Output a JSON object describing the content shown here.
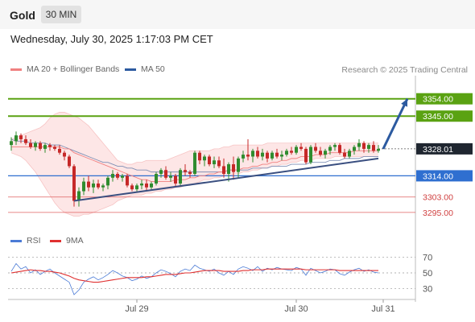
{
  "header": {
    "symbol": "Gold",
    "timeframe": "30 MIN"
  },
  "datetime": "Wednesday, July 30, 2025 1:17:03 PM CET",
  "legend": {
    "ma20": "MA 20 + Bollinger Bands",
    "ma50": "MA 50",
    "credit": "Research © 2025 Trading Central",
    "rsi": "RSI",
    "ma9": "9MA"
  },
  "colors": {
    "green": "#5aa212",
    "blue_line": "#2f6fd0",
    "red_line": "#e06060",
    "current_box": "#1f2630",
    "arrow": "#2c5aa0",
    "candle_up": "#2f8c2f",
    "candle_down": "#c62828",
    "ma20": "#f08080",
    "ma50": "#7f8fb5",
    "band_fill": "#fde2e2",
    "rsi": "#4b7bd6",
    "rsi_ma": "#e03030"
  },
  "price_levels": [
    {
      "value": 3354.0,
      "label": "3354.00",
      "kind": "resistance-green",
      "boxed": true
    },
    {
      "value": 3345.0,
      "label": "3345.00",
      "kind": "resistance-green",
      "boxed": true
    },
    {
      "value": 3328.01,
      "label": "3328.01",
      "kind": "current",
      "boxed": true
    },
    {
      "value": 3314.0,
      "label": "3314.00",
      "kind": "pivot-blue",
      "boxed": true
    },
    {
      "value": 3303.0,
      "label": "3303.00",
      "kind": "support-red",
      "boxed": false
    },
    {
      "value": 3295.0,
      "label": "3295.00",
      "kind": "support-red",
      "boxed": false
    }
  ],
  "chart_data": {
    "type": "candlestick",
    "instrument": "Gold",
    "interval": "30 MIN",
    "x_tick_labels": [
      "Jul 29",
      "Jul 30",
      "Jul 31"
    ],
    "x_tick_bar_index": [
      26,
      59,
      77
    ],
    "y_range": [
      3287,
      3366
    ],
    "ohlc": [
      [
        3330,
        3334,
        3327,
        3332
      ],
      [
        3332,
        3337,
        3330,
        3335
      ],
      [
        3335,
        3336,
        3331,
        3333
      ],
      [
        3333,
        3335,
        3330,
        3331
      ],
      [
        3331,
        3333,
        3328,
        3329
      ],
      [
        3329,
        3332,
        3327,
        3331
      ],
      [
        3331,
        3332,
        3327,
        3328
      ],
      [
        3328,
        3331,
        3326,
        3330
      ],
      [
        3330,
        3331,
        3327,
        3329
      ],
      [
        3329,
        3330,
        3327,
        3328
      ],
      [
        3328,
        3330,
        3325,
        3326
      ],
      [
        3326,
        3327,
        3322,
        3324
      ],
      [
        3324,
        3325,
        3318,
        3319
      ],
      [
        3319,
        3320,
        3298,
        3301
      ],
      [
        3301,
        3308,
        3298,
        3306
      ],
      [
        3306,
        3313,
        3304,
        3311
      ],
      [
        3311,
        3314,
        3306,
        3308
      ],
      [
        3308,
        3312,
        3305,
        3310
      ],
      [
        3310,
        3312,
        3307,
        3308
      ],
      [
        3308,
        3310,
        3306,
        3309
      ],
      [
        3309,
        3314,
        3307,
        3313
      ],
      [
        3313,
        3317,
        3311,
        3315
      ],
      [
        3315,
        3316,
        3312,
        3313
      ],
      [
        3313,
        3315,
        3311,
        3314
      ],
      [
        3314,
        3315,
        3308,
        3309
      ],
      [
        3309,
        3310,
        3306,
        3307
      ],
      [
        3307,
        3310,
        3306,
        3309
      ],
      [
        3309,
        3312,
        3307,
        3310
      ],
      [
        3310,
        3312,
        3306,
        3308
      ],
      [
        3308,
        3311,
        3307,
        3310
      ],
      [
        3310,
        3316,
        3309,
        3315
      ],
      [
        3315,
        3318,
        3313,
        3317
      ],
      [
        3317,
        3319,
        3312,
        3313
      ],
      [
        3313,
        3316,
        3311,
        3314
      ],
      [
        3314,
        3315,
        3308,
        3310
      ],
      [
        3310,
        3318,
        3309,
        3317
      ],
      [
        3317,
        3320,
        3314,
        3316
      ],
      [
        3316,
        3317,
        3313,
        3315
      ],
      [
        3315,
        3327,
        3314,
        3326
      ],
      [
        3326,
        3327,
        3320,
        3322
      ],
      [
        3322,
        3325,
        3319,
        3324
      ],
      [
        3324,
        3325,
        3319,
        3320
      ],
      [
        3320,
        3324,
        3318,
        3322
      ],
      [
        3322,
        3324,
        3318,
        3319
      ],
      [
        3319,
        3323,
        3313,
        3315
      ],
      [
        3315,
        3321,
        3311,
        3320
      ],
      [
        3320,
        3324,
        3312,
        3316
      ],
      [
        3316,
        3324,
        3313,
        3323
      ],
      [
        3323,
        3327,
        3321,
        3325
      ],
      [
        3325,
        3333,
        3322,
        3324
      ],
      [
        3324,
        3328,
        3321,
        3327
      ],
      [
        3327,
        3329,
        3323,
        3324
      ],
      [
        3324,
        3328,
        3322,
        3326
      ],
      [
        3326,
        3327,
        3321,
        3323
      ],
      [
        3323,
        3327,
        3322,
        3326
      ],
      [
        3326,
        3328,
        3323,
        3324
      ],
      [
        3324,
        3327,
        3322,
        3325
      ],
      [
        3325,
        3328,
        3324,
        3327
      ],
      [
        3327,
        3329,
        3325,
        3326
      ],
      [
        3326,
        3330,
        3325,
        3329
      ],
      [
        3329,
        3331,
        3327,
        3328
      ],
      [
        3328,
        3329,
        3320,
        3321
      ],
      [
        3321,
        3330,
        3320,
        3329
      ],
      [
        3329,
        3331,
        3326,
        3327
      ],
      [
        3327,
        3329,
        3324,
        3325
      ],
      [
        3325,
        3328,
        3323,
        3327
      ],
      [
        3327,
        3330,
        3325,
        3329
      ],
      [
        3329,
        3331,
        3327,
        3330
      ],
      [
        3330,
        3331,
        3325,
        3326
      ],
      [
        3326,
        3328,
        3323,
        3324
      ],
      [
        3324,
        3328,
        3323,
        3327
      ],
      [
        3327,
        3330,
        3325,
        3329
      ],
      [
        3329,
        3333,
        3327,
        3331
      ],
      [
        3331,
        3332,
        3326,
        3328
      ],
      [
        3328,
        3331,
        3326,
        3330
      ],
      [
        3330,
        3332,
        3326,
        3327
      ],
      [
        3327,
        3330,
        3326,
        3328
      ]
    ],
    "ma20": [
      3329,
      3329,
      3329,
      3329,
      3329,
      3329,
      3329,
      3329,
      3329,
      3329,
      3329,
      3328,
      3328,
      3326,
      3325,
      3324,
      3323,
      3322,
      3321,
      3320,
      3319,
      3318,
      3317,
      3316,
      3315,
      3314,
      3313,
      3312,
      3312,
      3311,
      3311,
      3311,
      3311,
      3311,
      3312,
      3312,
      3312,
      3313,
      3313,
      3314,
      3314,
      3315,
      3315,
      3316,
      3316,
      3317,
      3317,
      3317,
      3318,
      3318,
      3319,
      3319,
      3320,
      3320,
      3321,
      3321,
      3322,
      3322,
      3323,
      3323,
      3324,
      3324,
      3324,
      3325,
      3325,
      3325,
      3326,
      3326,
      3326,
      3326,
      3326,
      3327,
      3327,
      3327,
      3327,
      3327,
      3327
    ],
    "ma50": [
      3333,
      3332,
      3332,
      3332,
      3331,
      3331,
      3331,
      3331,
      3330,
      3330,
      3330,
      3329,
      3328,
      3327,
      3326,
      3325,
      3324,
      3323,
      3322,
      3321,
      3321,
      3320,
      3319,
      3319,
      3318,
      3318,
      3317,
      3317,
      3317,
      3316,
      3316,
      3316,
      3316,
      3316,
      3316,
      3316,
      3316,
      3316,
      3316,
      3316,
      3316,
      3316,
      3316,
      3316,
      3316,
      3317,
      3317,
      3317,
      3317,
      3317,
      3318,
      3318,
      3318,
      3318,
      3319,
      3319,
      3319,
      3319,
      3320,
      3320,
      3320,
      3320,
      3321,
      3321,
      3321,
      3321,
      3322,
      3322,
      3322,
      3323,
      3323,
      3323,
      3323,
      3324,
      3324,
      3324,
      3324
    ],
    "bollinger_upper": [
      3333,
      3334,
      3335,
      3336,
      3337,
      3338,
      3339,
      3341,
      3344,
      3346,
      3347,
      3347,
      3346,
      3345,
      3344,
      3342,
      3340,
      3337,
      3334,
      3331,
      3328,
      3325,
      3322,
      3321,
      3320,
      3320,
      3321,
      3321,
      3322,
      3322,
      3322,
      3322,
      3322,
      3323,
      3324,
      3325,
      3326,
      3327,
      3327,
      3327,
      3327,
      3327,
      3328,
      3328,
      3329,
      3329,
      3330,
      3330,
      3330,
      3330,
      3330,
      3330,
      3330,
      3331,
      3331,
      3331,
      3331,
      3331,
      3331,
      3331,
      3331,
      3331,
      3331,
      3331,
      3331,
      3331,
      3331,
      3331,
      3331,
      3331,
      3331,
      3331,
      3331,
      3331,
      3331,
      3331,
      3331
    ],
    "bollinger_lower": [
      3326,
      3325,
      3324,
      3322,
      3319,
      3316,
      3312,
      3308,
      3304,
      3300,
      3297,
      3295,
      3294,
      3293,
      3293,
      3294,
      3294,
      3295,
      3296,
      3297,
      3298,
      3299,
      3301,
      3302,
      3303,
      3304,
      3304,
      3304,
      3305,
      3305,
      3306,
      3306,
      3307,
      3307,
      3308,
      3308,
      3309,
      3309,
      3310,
      3311,
      3312,
      3312,
      3313,
      3313,
      3314,
      3314,
      3315,
      3315,
      3316,
      3316,
      3317,
      3317,
      3318,
      3318,
      3319,
      3319,
      3320,
      3320,
      3321,
      3321,
      3322,
      3322,
      3322,
      3323,
      3323,
      3323,
      3323,
      3324,
      3324,
      3324,
      3324,
      3324,
      3324,
      3324,
      3324,
      3324,
      3324
    ],
    "trendline": {
      "from": [
        13,
        3301
      ],
      "to": [
        76,
        3323
      ]
    },
    "projection_arrow": {
      "from": [
        77,
        3328
      ],
      "to": [
        82,
        3354
      ]
    },
    "rsi": {
      "range": [
        20,
        80
      ],
      "levels": [
        70,
        50,
        30
      ],
      "level_labels": [
        "70",
        "50",
        "30"
      ],
      "values": [
        52,
        62,
        55,
        58,
        50,
        54,
        48,
        52,
        55,
        50,
        46,
        42,
        38,
        22,
        28,
        38,
        42,
        45,
        41,
        44,
        48,
        53,
        50,
        46,
        44,
        40,
        42,
        46,
        43,
        45,
        50,
        54,
        52,
        49,
        45,
        52,
        55,
        53,
        60,
        56,
        54,
        52,
        55,
        50,
        47,
        52,
        48,
        55,
        58,
        56,
        53,
        58,
        52,
        56,
        54,
        57,
        55,
        54,
        53,
        57,
        55,
        47,
        56,
        53,
        50,
        52,
        55,
        54,
        49,
        47,
        51,
        54,
        56,
        52,
        54,
        51,
        50
      ],
      "ma9": [
        50,
        51,
        52,
        53,
        54,
        53,
        53,
        52,
        52,
        51,
        50,
        48,
        46,
        43,
        41,
        40,
        39,
        38,
        38,
        39,
        40,
        41,
        42,
        43,
        44,
        44,
        44,
        44,
        45,
        45,
        46,
        47,
        48,
        48,
        48,
        49,
        50,
        50,
        51,
        52,
        53,
        53,
        53,
        53,
        52,
        52,
        52,
        52,
        53,
        53,
        54,
        54,
        54,
        55,
        55,
        55,
        55,
        55,
        55,
        55,
        55,
        54,
        54,
        54,
        54,
        54,
        54,
        54,
        53,
        53,
        53,
        53,
        53,
        53,
        53,
        53,
        53
      ]
    }
  }
}
